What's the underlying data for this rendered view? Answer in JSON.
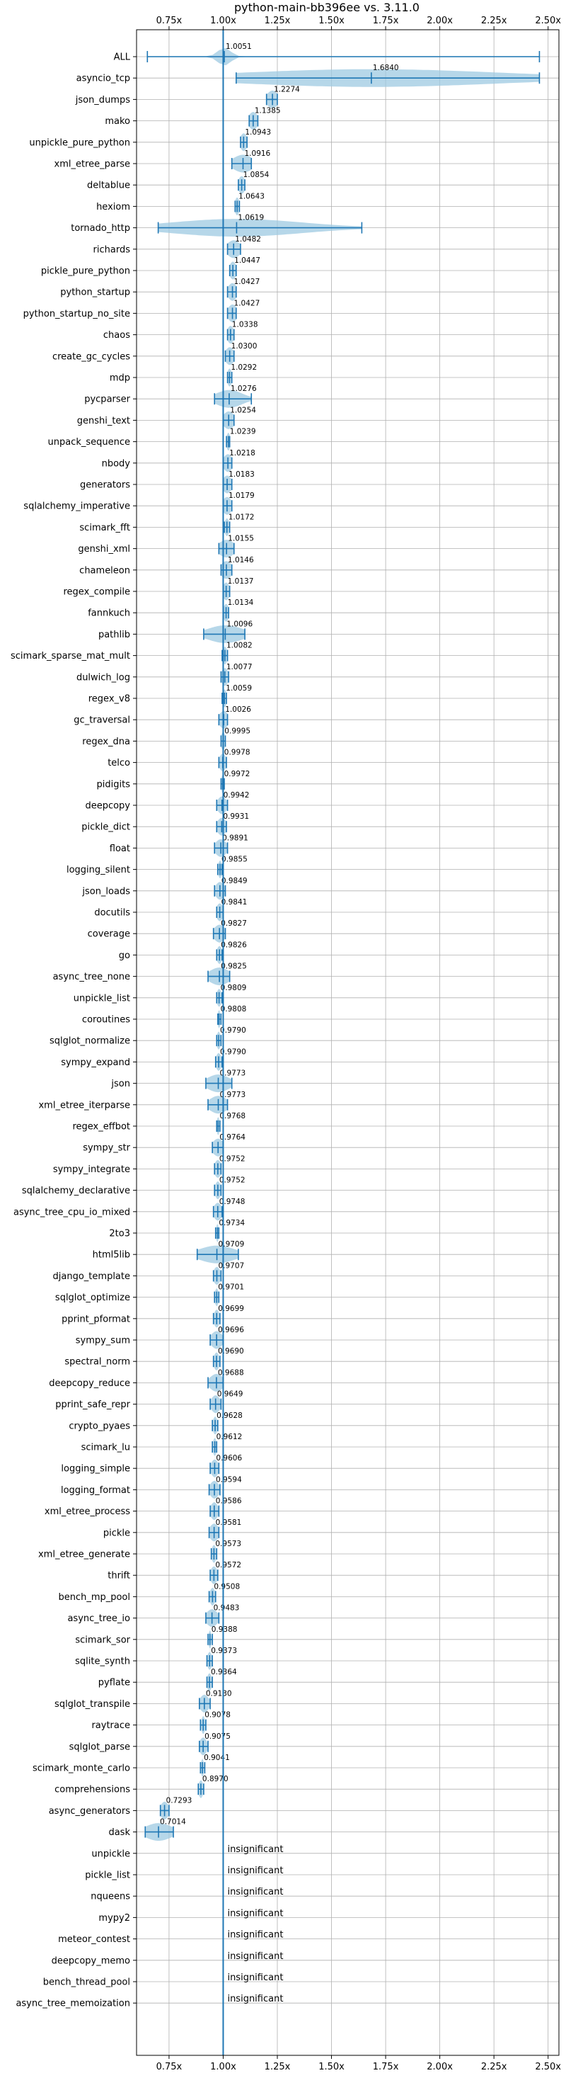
{
  "chart_data": {
    "type": "violin",
    "title": "python-main-bb396ee vs. 3.11.0",
    "xlabel": "",
    "ylabel": "",
    "xlim": [
      0.6,
      2.55
    ],
    "xticks": [
      0.75,
      1.0,
      1.25,
      1.5,
      1.75,
      2.0,
      2.25,
      2.5
    ],
    "xtick_labels": [
      "0.75x",
      "1.00x",
      "1.25x",
      "1.50x",
      "1.75x",
      "2.00x",
      "2.25x",
      "2.50x"
    ],
    "x_ticks_top_and_bottom": true,
    "reference_line_x": 1.0,
    "grid": true,
    "insignificant_label": "insignificant",
    "benchmarks": [
      {
        "name": "ALL",
        "mean": 1.0051,
        "label": "1.0051",
        "min": 0.65,
        "max": 2.46,
        "spread": 0.03
      },
      {
        "name": "asyncio_tcp",
        "mean": 1.684,
        "label": "1.6840",
        "min": 1.06,
        "max": 2.46,
        "spread": 0.6
      },
      {
        "name": "json_dumps",
        "mean": 1.2274,
        "label": "1.2274",
        "min": 1.2,
        "max": 1.25,
        "spread": 0.025
      },
      {
        "name": "mako",
        "mean": 1.1385,
        "label": "1.1385",
        "min": 1.12,
        "max": 1.16,
        "spread": 0.02
      },
      {
        "name": "unpickle_pure_python",
        "mean": 1.0943,
        "label": "1.0943",
        "min": 1.08,
        "max": 1.11,
        "spread": 0.015
      },
      {
        "name": "xml_etree_parse",
        "mean": 1.0916,
        "label": "1.0916",
        "min": 1.04,
        "max": 1.13,
        "spread": 0.045
      },
      {
        "name": "deltablue",
        "mean": 1.0854,
        "label": "1.0854",
        "min": 1.07,
        "max": 1.1,
        "spread": 0.015
      },
      {
        "name": "hexiom",
        "mean": 1.0643,
        "label": "1.0643",
        "min": 1.055,
        "max": 1.075,
        "spread": 0.01
      },
      {
        "name": "tornado_http",
        "mean": 1.0619,
        "label": "1.0619",
        "min": 0.7,
        "max": 1.64,
        "spread": 0.3
      },
      {
        "name": "richards",
        "mean": 1.0482,
        "label": "1.0482",
        "min": 1.02,
        "max": 1.08,
        "spread": 0.03
      },
      {
        "name": "pickle_pure_python",
        "mean": 1.0447,
        "label": "1.0447",
        "min": 1.03,
        "max": 1.06,
        "spread": 0.015
      },
      {
        "name": "python_startup",
        "mean": 1.0427,
        "label": "1.0427",
        "min": 1.02,
        "max": 1.06,
        "spread": 0.02
      },
      {
        "name": "python_startup_no_site",
        "mean": 1.0427,
        "label": "1.0427",
        "min": 1.02,
        "max": 1.06,
        "spread": 0.02
      },
      {
        "name": "chaos",
        "mean": 1.0338,
        "label": "1.0338",
        "min": 1.02,
        "max": 1.05,
        "spread": 0.015
      },
      {
        "name": "create_gc_cycles",
        "mean": 1.03,
        "label": "1.0300",
        "min": 1.01,
        "max": 1.05,
        "spread": 0.02
      },
      {
        "name": "mdp",
        "mean": 1.0292,
        "label": "1.0292",
        "min": 1.02,
        "max": 1.04,
        "spread": 0.01
      },
      {
        "name": "pycparser",
        "mean": 1.0276,
        "label": "1.0276",
        "min": 0.96,
        "max": 1.13,
        "spread": 0.06
      },
      {
        "name": "genshi_text",
        "mean": 1.0254,
        "label": "1.0254",
        "min": 1.0,
        "max": 1.05,
        "spread": 0.025
      },
      {
        "name": "unpack_sequence",
        "mean": 1.0239,
        "label": "1.0239",
        "min": 1.015,
        "max": 1.03,
        "spread": 0.008
      },
      {
        "name": "nbody",
        "mean": 1.0218,
        "label": "1.0218",
        "min": 1.0,
        "max": 1.04,
        "spread": 0.02
      },
      {
        "name": "generators",
        "mean": 1.0183,
        "label": "1.0183",
        "min": 1.0,
        "max": 1.04,
        "spread": 0.02
      },
      {
        "name": "sqlalchemy_imperative",
        "mean": 1.0179,
        "label": "1.0179",
        "min": 1.0,
        "max": 1.04,
        "spread": 0.02
      },
      {
        "name": "scimark_fft",
        "mean": 1.0172,
        "label": "1.0172",
        "min": 1.005,
        "max": 1.03,
        "spread": 0.01
      },
      {
        "name": "genshi_xml",
        "mean": 1.0155,
        "label": "1.0155",
        "min": 0.98,
        "max": 1.05,
        "spread": 0.035
      },
      {
        "name": "chameleon",
        "mean": 1.0146,
        "label": "1.0146",
        "min": 0.99,
        "max": 1.04,
        "spread": 0.025
      },
      {
        "name": "regex_compile",
        "mean": 1.0137,
        "label": "1.0137",
        "min": 1.0,
        "max": 1.03,
        "spread": 0.015
      },
      {
        "name": "fannkuch",
        "mean": 1.0134,
        "label": "1.0134",
        "min": 1.0,
        "max": 1.025,
        "spread": 0.012
      },
      {
        "name": "pathlib",
        "mean": 1.0096,
        "label": "1.0096",
        "min": 0.91,
        "max": 1.1,
        "spread": 0.08
      },
      {
        "name": "scimark_sparse_mat_mult",
        "mean": 1.0082,
        "label": "1.0082",
        "min": 0.995,
        "max": 1.02,
        "spread": 0.01
      },
      {
        "name": "dulwich_log",
        "mean": 1.0077,
        "label": "1.0077",
        "min": 0.99,
        "max": 1.025,
        "spread": 0.015
      },
      {
        "name": "regex_v8",
        "mean": 1.0059,
        "label": "1.0059",
        "min": 0.995,
        "max": 1.015,
        "spread": 0.01
      },
      {
        "name": "gc_traversal",
        "mean": 1.0026,
        "label": "1.0026",
        "min": 0.98,
        "max": 1.02,
        "spread": 0.02
      },
      {
        "name": "regex_dna",
        "mean": 0.9995,
        "label": "0.9995",
        "min": 0.99,
        "max": 1.01,
        "spread": 0.01
      },
      {
        "name": "telco",
        "mean": 0.9978,
        "label": "0.9978",
        "min": 0.98,
        "max": 1.015,
        "spread": 0.015
      },
      {
        "name": "pidigits",
        "mean": 0.9972,
        "label": "0.9972",
        "min": 0.99,
        "max": 1.005,
        "spread": 0.006
      },
      {
        "name": "deepcopy",
        "mean": 0.9942,
        "label": "0.9942",
        "min": 0.97,
        "max": 1.02,
        "spread": 0.02
      },
      {
        "name": "pickle_dict",
        "mean": 0.9931,
        "label": "0.9931",
        "min": 0.97,
        "max": 1.015,
        "spread": 0.02
      },
      {
        "name": "float",
        "mean": 0.9891,
        "label": "0.9891",
        "min": 0.96,
        "max": 1.02,
        "spread": 0.025
      },
      {
        "name": "logging_silent",
        "mean": 0.9855,
        "label": "0.9855",
        "min": 0.975,
        "max": 0.995,
        "spread": 0.008
      },
      {
        "name": "json_loads",
        "mean": 0.9849,
        "label": "0.9849",
        "min": 0.96,
        "max": 1.01,
        "spread": 0.02
      },
      {
        "name": "docutils",
        "mean": 0.9841,
        "label": "0.9841",
        "min": 0.97,
        "max": 1.0,
        "spread": 0.015
      },
      {
        "name": "coverage",
        "mean": 0.9827,
        "label": "0.9827",
        "min": 0.955,
        "max": 1.01,
        "spread": 0.025
      },
      {
        "name": "go",
        "mean": 0.9826,
        "label": "0.9826",
        "min": 0.97,
        "max": 0.995,
        "spread": 0.012
      },
      {
        "name": "async_tree_none",
        "mean": 0.9825,
        "label": "0.9825",
        "min": 0.93,
        "max": 1.03,
        "spread": 0.045
      },
      {
        "name": "unpickle_list",
        "mean": 0.9809,
        "label": "0.9809",
        "min": 0.97,
        "max": 0.995,
        "spread": 0.01
      },
      {
        "name": "coroutines",
        "mean": 0.9808,
        "label": "0.9808",
        "min": 0.975,
        "max": 0.99,
        "spread": 0.006
      },
      {
        "name": "sqlglot_normalize",
        "mean": 0.979,
        "label": "0.9790",
        "min": 0.97,
        "max": 0.99,
        "spread": 0.008
      },
      {
        "name": "sympy_expand",
        "mean": 0.979,
        "label": "0.9790",
        "min": 0.965,
        "max": 0.995,
        "spread": 0.012
      },
      {
        "name": "json",
        "mean": 0.9773,
        "label": "0.9773",
        "min": 0.92,
        "max": 1.04,
        "spread": 0.05
      },
      {
        "name": "xml_etree_iterparse",
        "mean": 0.9773,
        "label": "0.9773",
        "min": 0.93,
        "max": 1.02,
        "spread": 0.04
      },
      {
        "name": "regex_effbot",
        "mean": 0.9768,
        "label": "0.9768",
        "min": 0.97,
        "max": 0.985,
        "spread": 0.006
      },
      {
        "name": "sympy_str",
        "mean": 0.9764,
        "label": "0.9764",
        "min": 0.95,
        "max": 1.0,
        "spread": 0.025
      },
      {
        "name": "sympy_integrate",
        "mean": 0.9752,
        "label": "0.9752",
        "min": 0.96,
        "max": 0.99,
        "spread": 0.015
      },
      {
        "name": "sqlalchemy_declarative",
        "mean": 0.9752,
        "label": "0.9752",
        "min": 0.96,
        "max": 0.99,
        "spread": 0.012
      },
      {
        "name": "async_tree_cpu_io_mixed",
        "mean": 0.9748,
        "label": "0.9748",
        "min": 0.955,
        "max": 0.995,
        "spread": 0.018
      },
      {
        "name": "2to3",
        "mean": 0.9734,
        "label": "0.9734",
        "min": 0.965,
        "max": 0.98,
        "spread": 0.006
      },
      {
        "name": "html5lib",
        "mean": 0.9709,
        "label": "0.9709",
        "min": 0.88,
        "max": 1.07,
        "spread": 0.08
      },
      {
        "name": "django_template",
        "mean": 0.9707,
        "label": "0.9707",
        "min": 0.955,
        "max": 0.99,
        "spread": 0.015
      },
      {
        "name": "sqlglot_optimize",
        "mean": 0.9701,
        "label": "0.9701",
        "min": 0.96,
        "max": 0.98,
        "spread": 0.008
      },
      {
        "name": "pprint_pformat",
        "mean": 0.9699,
        "label": "0.9699",
        "min": 0.955,
        "max": 0.985,
        "spread": 0.012
      },
      {
        "name": "sympy_sum",
        "mean": 0.9696,
        "label": "0.9696",
        "min": 0.94,
        "max": 1.0,
        "spread": 0.025
      },
      {
        "name": "spectral_norm",
        "mean": 0.969,
        "label": "0.9690",
        "min": 0.955,
        "max": 0.985,
        "spread": 0.012
      },
      {
        "name": "deepcopy_reduce",
        "mean": 0.9688,
        "label": "0.9688",
        "min": 0.93,
        "max": 1.0,
        "spread": 0.03
      },
      {
        "name": "pprint_safe_repr",
        "mean": 0.9649,
        "label": "0.9649",
        "min": 0.94,
        "max": 0.99,
        "spread": 0.02
      },
      {
        "name": "crypto_pyaes",
        "mean": 0.9628,
        "label": "0.9628",
        "min": 0.95,
        "max": 0.975,
        "spread": 0.01
      },
      {
        "name": "scimark_lu",
        "mean": 0.9612,
        "label": "0.9612",
        "min": 0.95,
        "max": 0.97,
        "spread": 0.008
      },
      {
        "name": "logging_simple",
        "mean": 0.9606,
        "label": "0.9606",
        "min": 0.94,
        "max": 0.98,
        "spread": 0.016
      },
      {
        "name": "logging_format",
        "mean": 0.9594,
        "label": "0.9594",
        "min": 0.935,
        "max": 0.985,
        "spread": 0.02
      },
      {
        "name": "xml_etree_process",
        "mean": 0.9586,
        "label": "0.9586",
        "min": 0.94,
        "max": 0.98,
        "spread": 0.016
      },
      {
        "name": "pickle",
        "mean": 0.9581,
        "label": "0.9581",
        "min": 0.935,
        "max": 0.98,
        "spread": 0.02
      },
      {
        "name": "xml_etree_generate",
        "mean": 0.9573,
        "label": "0.9573",
        "min": 0.945,
        "max": 0.97,
        "spread": 0.01
      },
      {
        "name": "thrift",
        "mean": 0.9572,
        "label": "0.9572",
        "min": 0.94,
        "max": 0.975,
        "spread": 0.015
      },
      {
        "name": "bench_mp_pool",
        "mean": 0.9508,
        "label": "0.9508",
        "min": 0.935,
        "max": 0.965,
        "spread": 0.012
      },
      {
        "name": "async_tree_io",
        "mean": 0.9483,
        "label": "0.9483",
        "min": 0.92,
        "max": 0.98,
        "spread": 0.025
      },
      {
        "name": "scimark_sor",
        "mean": 0.9388,
        "label": "0.9388",
        "min": 0.93,
        "max": 0.95,
        "spread": 0.006
      },
      {
        "name": "sqlite_synth",
        "mean": 0.9373,
        "label": "0.9373",
        "min": 0.925,
        "max": 0.95,
        "spread": 0.01
      },
      {
        "name": "pyflate",
        "mean": 0.9364,
        "label": "0.9364",
        "min": 0.925,
        "max": 0.95,
        "spread": 0.01
      },
      {
        "name": "sqlglot_transpile",
        "mean": 0.913,
        "label": "0.9130",
        "min": 0.89,
        "max": 0.94,
        "spread": 0.02
      },
      {
        "name": "raytrace",
        "mean": 0.9078,
        "label": "0.9078",
        "min": 0.895,
        "max": 0.92,
        "spread": 0.008
      },
      {
        "name": "sqlglot_parse",
        "mean": 0.9075,
        "label": "0.9075",
        "min": 0.89,
        "max": 0.93,
        "spread": 0.016
      },
      {
        "name": "scimark_monte_carlo",
        "mean": 0.9041,
        "label": "0.9041",
        "min": 0.895,
        "max": 0.915,
        "spread": 0.006
      },
      {
        "name": "comprehensions",
        "mean": 0.897,
        "label": "0.8970",
        "min": 0.885,
        "max": 0.91,
        "spread": 0.01
      },
      {
        "name": "async_generators",
        "mean": 0.7293,
        "label": "0.7293",
        "min": 0.71,
        "max": 0.75,
        "spread": 0.018
      },
      {
        "name": "dask",
        "mean": 0.7014,
        "label": "0.7014",
        "min": 0.64,
        "max": 0.77,
        "spread": 0.06
      },
      {
        "name": "unpickle",
        "insignificant": true
      },
      {
        "name": "pickle_list",
        "insignificant": true
      },
      {
        "name": "nqueens",
        "insignificant": true
      },
      {
        "name": "mypy2",
        "insignificant": true
      },
      {
        "name": "meteor_contest",
        "insignificant": true
      },
      {
        "name": "deepcopy_memo",
        "insignificant": true
      },
      {
        "name": "bench_thread_pool",
        "insignificant": true
      },
      {
        "name": "async_tree_memoization",
        "insignificant": true
      }
    ],
    "colors": {
      "violin_fill": "#9ecae1",
      "line": "#1f77b4",
      "grid": "#b0b0b0",
      "text": "#000000"
    }
  }
}
